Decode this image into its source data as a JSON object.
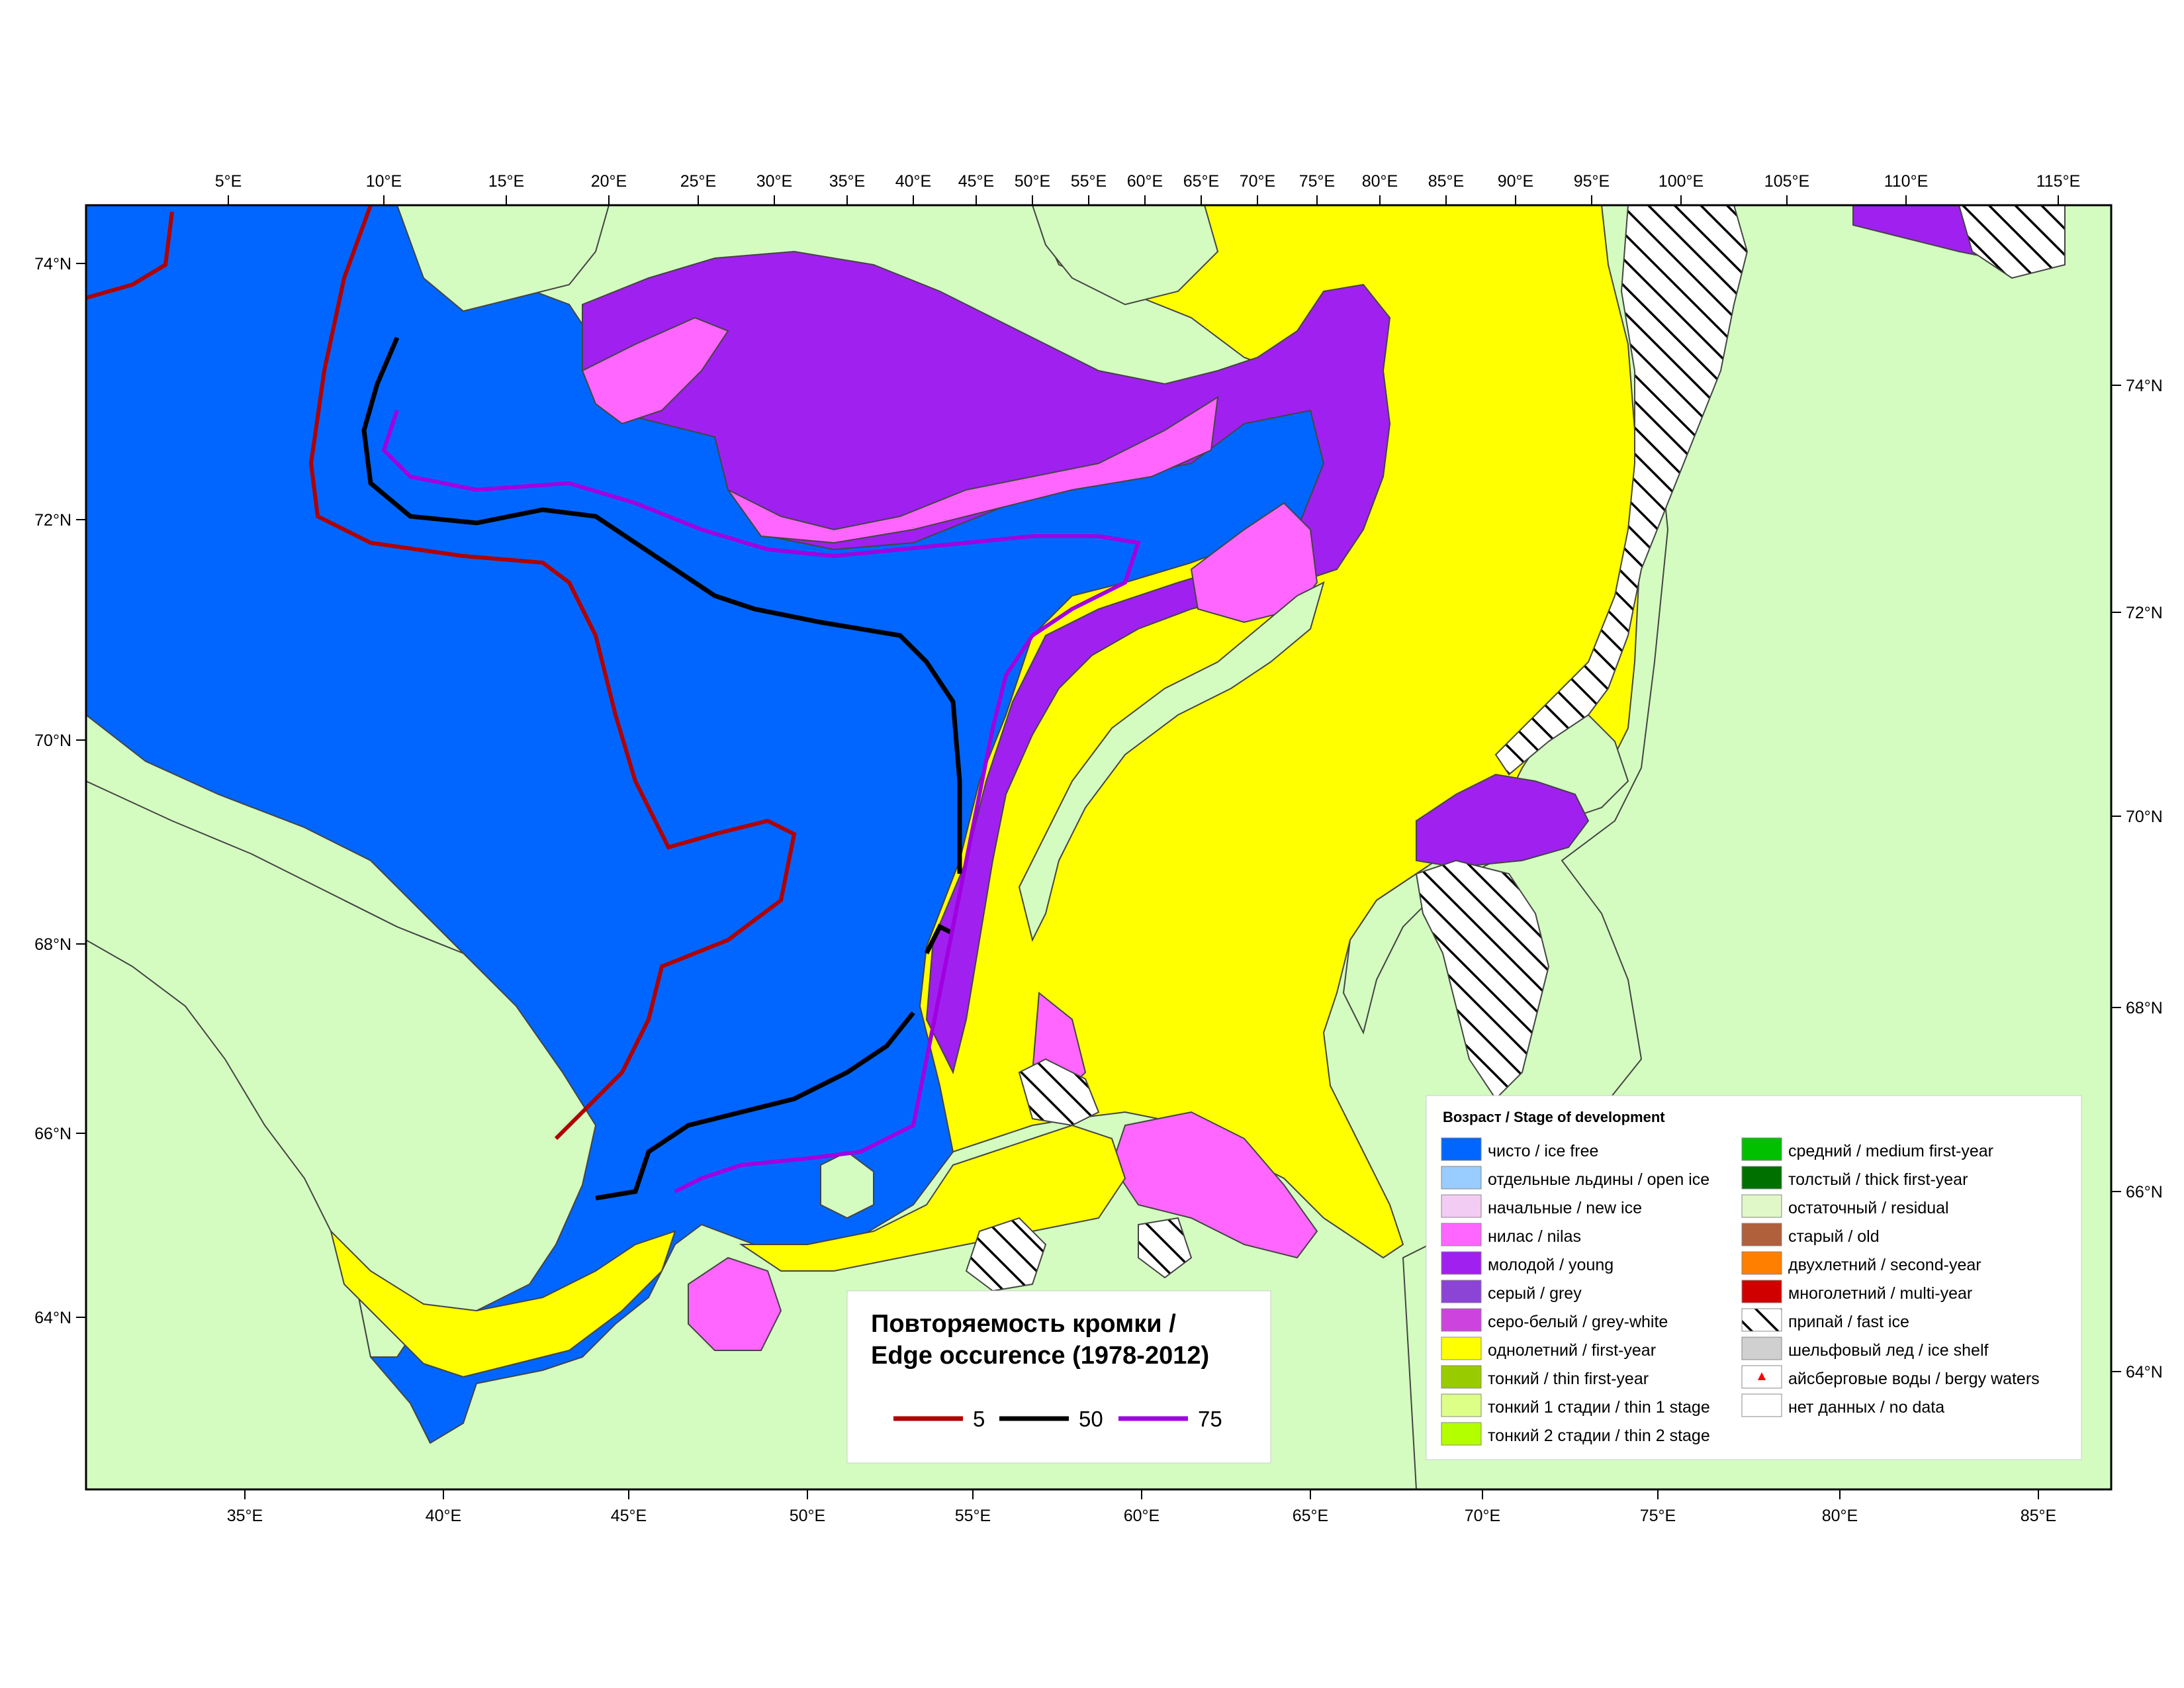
{
  "map": {
    "top_lon_labels": [
      "5°E",
      "10°E",
      "15°E",
      "20°E",
      "25°E",
      "30°E",
      "35°E",
      "40°E",
      "45°E",
      "50°E",
      "55°E",
      "60°E",
      "65°E",
      "70°E",
      "75°E",
      "80°E",
      "85°E",
      "90°E",
      "95°E",
      "100°E",
      "105°E",
      "110°E",
      "115°E"
    ],
    "bottom_lon_labels": [
      "35°E",
      "40°E",
      "45°E",
      "50°E",
      "55°E",
      "60°E",
      "65°E",
      "70°E",
      "75°E",
      "80°E",
      "85°E"
    ],
    "left_lat_labels": [
      "74°N",
      "72°N",
      "70°N",
      "68°N",
      "66°N",
      "64°N"
    ],
    "right_lat_labels": [
      "74°N",
      "72°N",
      "70°N",
      "68°N",
      "66°N",
      "64°N"
    ]
  },
  "colors": {
    "land": "#d4fcc0",
    "ice_free": "#0066ff",
    "first_year": "#ffff00",
    "young": "#a020f0",
    "nilas": "#ff66ff",
    "fast_ice_hatch": "#000000",
    "edge_5": "#b00000",
    "edge_50": "#000000",
    "edge_75": "#a000e0"
  },
  "stage_legend": {
    "title": "Возраст / Stage of development",
    "left_items": [
      {
        "label": "чисто / ice free",
        "color": "#0066ff"
      },
      {
        "label": "отдельные льдины / open ice",
        "color": "#99ccff"
      },
      {
        "label": "начальные / new ice",
        "color": "#f2ccf2"
      },
      {
        "label": "нилас / nilas",
        "color": "#ff66ff"
      },
      {
        "label": "молодой / young",
        "color": "#a020f0"
      },
      {
        "label": "серый / grey",
        "color": "#8b44d6"
      },
      {
        "label": "серо-белый / grey-white",
        "color": "#cc44dd"
      },
      {
        "label": "однолетний / first-year",
        "color": "#ffff00"
      },
      {
        "label": "тонкий / thin first-year",
        "color": "#99cc00"
      },
      {
        "label": "тонкий 1 стадии / thin 1 stage",
        "color": "#ddff88"
      },
      {
        "label": "тонкий 2 стадии / thin 2 stage",
        "color": "#b3ff00"
      }
    ],
    "right_items": [
      {
        "label": "средний / medium first-year",
        "color": "#00c000"
      },
      {
        "label": "толстый / thick first-year",
        "color": "#007000"
      },
      {
        "label": "остаточный / residual",
        "color": "#e0f7c8"
      },
      {
        "label": "старый / old",
        "color": "#b0603a"
      },
      {
        "label": "двухлетний / second-year",
        "color": "#ff7f00"
      },
      {
        "label": "многолетний / multi-year",
        "color": "#d00000"
      },
      {
        "label": "припай / fast ice",
        "color": "hatch"
      },
      {
        "label": "шельфовый лед / ice shelf",
        "color": "#d0d0d0"
      },
      {
        "label": "айсберговые воды / bergy waters",
        "color": "berg"
      },
      {
        "label": "нет данных / no data",
        "color": "#ffffff"
      }
    ]
  },
  "edge_legend": {
    "title_line1": "Повторяемость кромки /",
    "title_line2": "Edge occurence (1978-2012)",
    "items": [
      {
        "label": "5",
        "color": "#b00000"
      },
      {
        "label": "50",
        "color": "#000000"
      },
      {
        "label": "75",
        "color": "#a000e0"
      }
    ]
  }
}
